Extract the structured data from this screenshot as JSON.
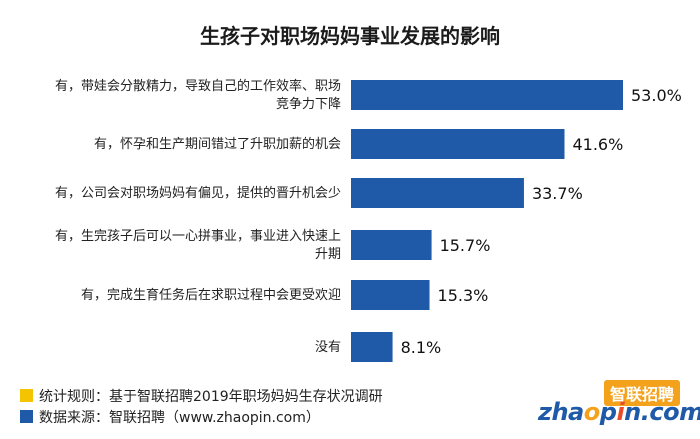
{
  "title": "生孩子对职场妈妈事业发展的影响",
  "chart_data": {
    "type": "bar",
    "orientation": "horizontal",
    "categories": [
      [
        "有，带娃会分散精力，导致自己的工作效率、职场",
        "竞争力下降"
      ],
      [
        "有，怀孕和生产期间错过了升职加薪的机会"
      ],
      [
        "有，公司会对职场妈妈有偏见，提供的晋升机会少"
      ],
      [
        "有，生完孩子后可以一心拼事业，事业进入快速上",
        "升期"
      ],
      [
        "有，完成生育任务后在求职过程中会更受欢迎"
      ],
      [
        "没有"
      ]
    ],
    "values": [
      53.0,
      41.6,
      33.7,
      15.7,
      15.3,
      8.1
    ],
    "value_labels": [
      "53.0%",
      "41.6%",
      "33.7%",
      "15.7%",
      "15.3%",
      "8.1%"
    ],
    "bar_color": "#1f5aa8",
    "xlim": [
      0,
      53.0
    ]
  },
  "footer": {
    "rule": "统计规则：基于智联招聘2019年职场妈妈生存状况调研",
    "source": "数据来源：智联招聘（www.zhaopin.com）",
    "rule_color": "#f4c400",
    "source_color": "#1f5aa8"
  },
  "logo": {
    "cn": "智联招聘",
    "en_parts": [
      "zha",
      "o",
      "p",
      "i",
      "n.com"
    ]
  }
}
